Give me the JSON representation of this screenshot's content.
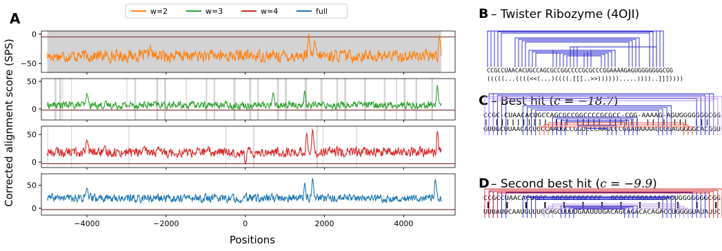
{
  "panel_labels": {
    "a": "A",
    "b": "B",
    "c": "C",
    "d": "D"
  },
  "colors": {
    "w2": "#ff7f0e",
    "w3": "#2ca02c",
    "w4": "#d62728",
    "full": "#1f77b4",
    "baseline": "#8b3a3a",
    "shade": "#d3d3d3"
  },
  "chart_data": {
    "type": "line",
    "ylabel": "Corrected alignment score (SPS)",
    "xlabel": "Positions",
    "xlim": [
      -5150,
      5300
    ],
    "x_ticks": [
      -4000,
      -2000,
      0,
      2000,
      4000
    ],
    "x_tick_labels": [
      "−4000",
      "−2000",
      "0",
      "2000",
      "4000"
    ],
    "legend": {
      "placement": "top",
      "entries": [
        "w=2",
        "w=3",
        "w=4",
        "full"
      ]
    },
    "series": [
      {
        "name": "w=2",
        "key": "w2",
        "ylim": [
          -65,
          5
        ],
        "y_ticks": [
          0,
          -50
        ],
        "baseline": -5,
        "mean": -37,
        "amp": 9,
        "range": [
          -5000,
          4950
        ],
        "spikes": [
          [
            1600,
            0
          ],
          [
            1750,
            -10
          ],
          [
            4900,
            -2
          ],
          [
            -2400,
            -18
          ]
        ],
        "shaded_intervals": [
          [
            -5000,
            4950
          ]
        ]
      },
      {
        "name": "w=3",
        "key": "w3",
        "ylim": [
          -20,
          55
        ],
        "y_ticks": [
          0,
          50
        ],
        "baseline": -2,
        "mean": 7,
        "amp": 6,
        "range": [
          -5000,
          4950
        ],
        "spikes": [
          [
            4850,
            45
          ],
          [
            1500,
            35
          ],
          [
            -4000,
            30
          ],
          [
            700,
            30
          ]
        ],
        "shaded_intervals": [
          [
            -4820,
            -4770
          ],
          [
            -4700,
            -4650
          ],
          [
            -4620,
            -4600
          ],
          [
            -4400,
            -4380
          ],
          [
            -3000,
            -2980
          ],
          [
            -2800,
            -2760
          ],
          [
            -2250,
            -2200
          ],
          [
            -2050,
            -2000
          ],
          [
            -1500,
            -1480
          ],
          [
            -1000,
            -960
          ],
          [
            -800,
            -760
          ],
          [
            -300,
            -250
          ],
          [
            100,
            150
          ],
          [
            300,
            340
          ],
          [
            800,
            850
          ],
          [
            1000,
            1050
          ],
          [
            1500,
            1560
          ],
          [
            1900,
            1950
          ],
          [
            2300,
            2340
          ],
          [
            2500,
            2550
          ],
          [
            3000,
            3050
          ],
          [
            3500,
            3540
          ],
          [
            3800,
            3830
          ],
          [
            4000,
            4050
          ],
          [
            4300,
            4340
          ],
          [
            4700,
            4740
          ]
        ]
      },
      {
        "name": "w=4",
        "key": "w4",
        "ylim": [
          -10,
          65
        ],
        "y_ticks": [
          0,
          50
        ],
        "baseline": -3,
        "mean": 18,
        "amp": 8,
        "range": [
          -5000,
          4950
        ],
        "spikes": [
          [
            1700,
            62
          ],
          [
            1550,
            55
          ],
          [
            4850,
            58
          ],
          [
            -4000,
            42
          ],
          [
            0,
            -5
          ]
        ],
        "shaded_intervals": [
          [
            -5000,
            -4980
          ],
          [
            -4400,
            -4380
          ],
          [
            -2950,
            -2930
          ],
          [
            -500,
            -480
          ],
          [
            200,
            230
          ],
          [
            1800,
            1830
          ],
          [
            1950,
            1970
          ],
          [
            2800,
            2820
          ]
        ]
      },
      {
        "name": "full",
        "key": "full",
        "ylim": [
          -15,
          75
        ],
        "y_ticks": [
          0,
          50
        ],
        "baseline": -3,
        "mean": 22,
        "amp": 8,
        "range": [
          -5000,
          4950
        ],
        "spikes": [
          [
            1700,
            68
          ],
          [
            1500,
            58
          ],
          [
            4800,
            66
          ],
          [
            -4000,
            45
          ]
        ],
        "shaded_intervals": []
      }
    ]
  },
  "panel_b": {
    "title": " – Twister Ribozyme (4OJI)",
    "sequence": "CCGCCUAACACUGCCAGCGCCGGCCCCGCGCCCGGAAAAGAGUGGGGGGGCGG",
    "structure": "(((((...((((<<(...)((((.[[[..>>)))))).....))))..]]]))))"
  },
  "panel_c": {
    "title": " – Best hit (",
    "title_math": "c = −18.7",
    "title_close": ")",
    "top_seq": "CCGC-CUAACACUGCCAGCGCCGGCCCCGCGCC-CGG-AAAAG-AGUGGGGGGGCGG",
    "match_line": "    | ||||||||||  |||  |||||  ||||||  ||  |  |||    ||| |",
    "bottom_seq": "GUUGCUUAACACUGCCAAUGCCGGUCCCAAGCCCGGAUAAAAGUGGAGGGGGCACGGU"
  },
  "panel_d": {
    "title": " – Second best hit (",
    "title_math": "c = −9.9",
    "title_close": ")",
    "top_seq": "CCGCCUAACACUGCC-AGCGCCGGCCCC--GCGCCCGGAAAAGAGUGGGGGGGCGG",
    "match_line": "  |    |      |    |     | |     |  |  |   |   | |    |",
    "bottom_seq": "UUUAUUCAAUGUUUGCAGCUUUUGAAUUUGACAGCAGACACAGACCUGGGGUAUAUUC"
  }
}
